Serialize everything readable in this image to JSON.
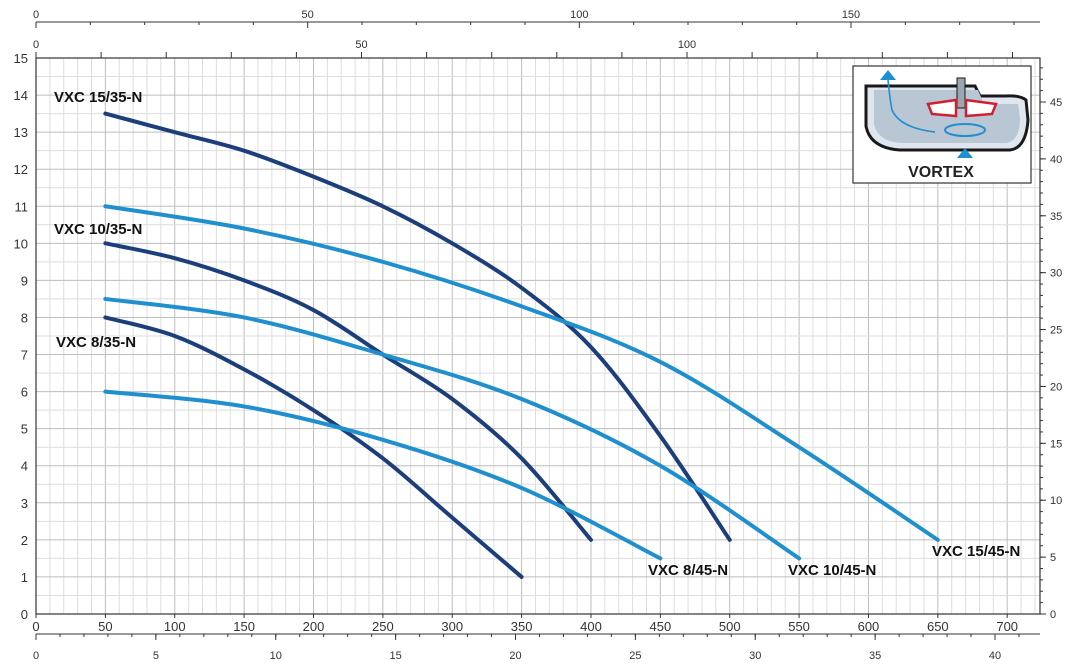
{
  "chart_data": {
    "type": "line",
    "title": "",
    "xlabel": "",
    "ylabel": "",
    "x_range": [
      0,
      720
    ],
    "y_range": [
      0,
      15
    ],
    "grid": true,
    "axes": {
      "bottom_ticks": [
        "0",
        "50",
        "100",
        "150",
        "200",
        "250",
        "300",
        "350",
        "400",
        "450",
        "500",
        "550",
        "600",
        "650",
        "700"
      ],
      "bottom2_ticks": [
        "0",
        "5",
        "10",
        "15",
        "20",
        "25",
        "30",
        "35",
        "40"
      ],
      "top_ticks": [
        "0",
        "50",
        "100",
        "150"
      ],
      "top2_ticks": [
        "0",
        "50",
        "100"
      ],
      "left_ticks": [
        "0",
        "1",
        "2",
        "3",
        "4",
        "5",
        "6",
        "7",
        "8",
        "9",
        "10",
        "11",
        "12",
        "13",
        "14",
        "15"
      ],
      "right_ticks": [
        "0",
        "5",
        "10",
        "15",
        "20",
        "25",
        "30",
        "35",
        "40",
        "45"
      ]
    },
    "series": [
      {
        "name": "VXC 15/35-N",
        "color": "#1c3f7c",
        "x": [
          50,
          100,
          150,
          200,
          250,
          300,
          350,
          400,
          450,
          500
        ],
        "y": [
          13.5,
          13.0,
          12.5,
          11.8,
          11.0,
          10.0,
          8.8,
          7.2,
          4.8,
          2.0
        ]
      },
      {
        "name": "VXC 10/35-N",
        "color": "#1c3f7c",
        "x": [
          50,
          100,
          150,
          200,
          250,
          300,
          350,
          400
        ],
        "y": [
          10.0,
          9.6,
          9.0,
          8.2,
          7.0,
          5.8,
          4.2,
          2.0
        ]
      },
      {
        "name": "VXC 8/35-N",
        "color": "#1c3f7c",
        "x": [
          50,
          100,
          150,
          200,
          250,
          300,
          350
        ],
        "y": [
          8.0,
          7.5,
          6.6,
          5.5,
          4.2,
          2.6,
          1.0
        ]
      },
      {
        "name": "VXC 15/45-N",
        "color": "#1f8fce",
        "x": [
          50,
          150,
          250,
          350,
          450,
          550,
          650
        ],
        "y": [
          11.0,
          10.4,
          9.5,
          8.3,
          6.8,
          4.5,
          2.0
        ]
      },
      {
        "name": "VXC 10/45-N",
        "color": "#1f8fce",
        "x": [
          50,
          150,
          250,
          350,
          450,
          550
        ],
        "y": [
          8.5,
          8.0,
          7.0,
          5.8,
          4.0,
          1.5
        ]
      },
      {
        "name": "VXC 8/45-N",
        "color": "#1f8fce",
        "x": [
          50,
          150,
          250,
          350,
          450
        ],
        "y": [
          6.0,
          5.6,
          4.7,
          3.4,
          1.5
        ]
      }
    ]
  },
  "inset": {
    "label": "VORTEX",
    "colors": {
      "frame": "#1a1a1a",
      "body": "#cfd8e2",
      "impeller": "#d02030",
      "flow": "#1f8fce"
    }
  },
  "colors": {
    "grid_major": "#bdbdbd",
    "grid_minor": "#dedede",
    "axis": "#333333"
  }
}
